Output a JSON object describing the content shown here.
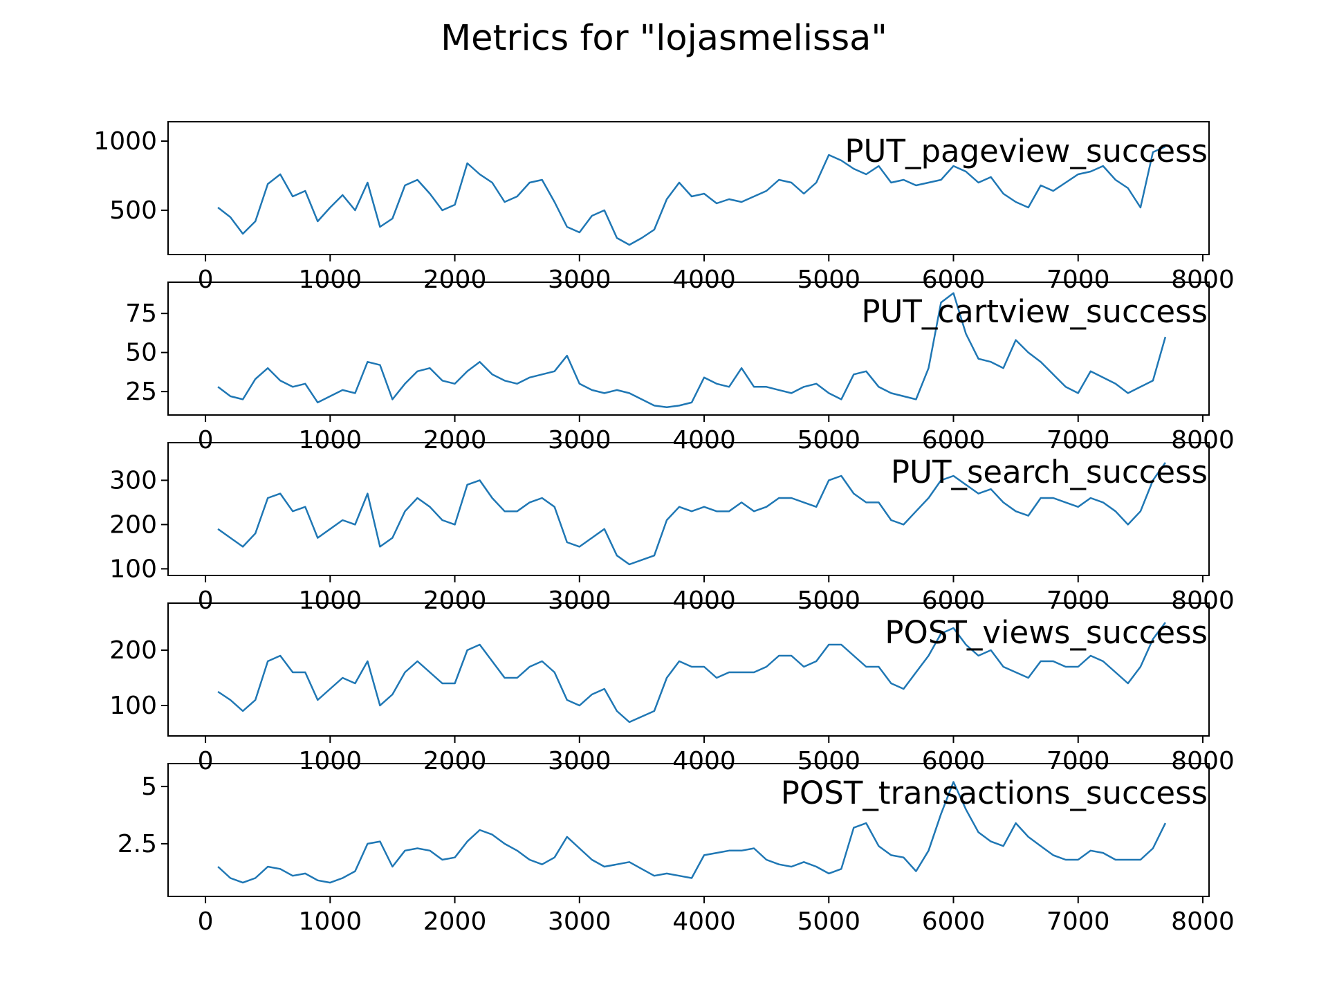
{
  "figure": {
    "title": "Metrics for \"lojasmelissa\"",
    "line_color": "#1f77b4"
  },
  "chart_data": [
    {
      "type": "line",
      "title": "PUT_pageview_success",
      "xlim": [
        -300,
        8050
      ],
      "ylim": [
        180,
        1140
      ],
      "xticks": [
        0,
        1000,
        2000,
        3000,
        4000,
        5000,
        6000,
        7000,
        8000
      ],
      "yticks": [
        500,
        1000
      ],
      "series": [
        {
          "x": [
            100,
            200,
            300,
            400,
            500,
            600,
            700,
            800,
            900,
            1000,
            1100,
            1200,
            1300,
            1400,
            1500,
            1600,
            1700,
            1800,
            1900,
            2000,
            2100,
            2200,
            2300,
            2400,
            2500,
            2600,
            2700,
            2800,
            2900,
            3000,
            3100,
            3200,
            3300,
            3400,
            3500,
            3600,
            3700,
            3800,
            3900,
            4000,
            4100,
            4200,
            4300,
            4400,
            4500,
            4600,
            4700,
            4800,
            4900,
            5000,
            5100,
            5200,
            5300,
            5400,
            5500,
            5600,
            5700,
            5800,
            5900,
            6000,
            6100,
            6200,
            6300,
            6400,
            6500,
            6600,
            6700,
            6800,
            6900,
            7000,
            7100,
            7200,
            7300,
            7400,
            7500,
            7600,
            7700
          ],
          "y": [
            520,
            450,
            330,
            420,
            690,
            760,
            600,
            640,
            420,
            520,
            610,
            500,
            700,
            380,
            440,
            680,
            720,
            620,
            500,
            540,
            840,
            760,
            700,
            560,
            600,
            700,
            720,
            560,
            380,
            340,
            460,
            500,
            300,
            250,
            300,
            360,
            580,
            700,
            600,
            620,
            550,
            580,
            560,
            600,
            640,
            720,
            700,
            620,
            700,
            900,
            860,
            800,
            760,
            820,
            700,
            720,
            680,
            700,
            720,
            820,
            780,
            700,
            740,
            620,
            560,
            520,
            680,
            640,
            700,
            760,
            780,
            820,
            720,
            660,
            520,
            920,
            960
          ]
        }
      ]
    },
    {
      "type": "line",
      "title": "PUT_cartview_success",
      "xlim": [
        -300,
        8050
      ],
      "ylim": [
        10,
        95
      ],
      "xticks": [
        0,
        1000,
        2000,
        3000,
        4000,
        5000,
        6000,
        7000,
        8000
      ],
      "yticks": [
        25,
        50,
        75
      ],
      "series": [
        {
          "x": [
            100,
            200,
            300,
            400,
            500,
            600,
            700,
            800,
            900,
            1000,
            1100,
            1200,
            1300,
            1400,
            1500,
            1600,
            1700,
            1800,
            1900,
            2000,
            2100,
            2200,
            2300,
            2400,
            2500,
            2600,
            2700,
            2800,
            2900,
            3000,
            3100,
            3200,
            3300,
            3400,
            3500,
            3600,
            3700,
            3800,
            3900,
            4000,
            4100,
            4200,
            4300,
            4400,
            4500,
            4600,
            4700,
            4800,
            4900,
            5000,
            5100,
            5200,
            5300,
            5400,
            5500,
            5600,
            5700,
            5800,
            5900,
            6000,
            6100,
            6200,
            6300,
            6400,
            6500,
            6600,
            6700,
            6800,
            6900,
            7000,
            7100,
            7200,
            7300,
            7400,
            7500,
            7600,
            7700
          ],
          "y": [
            28,
            22,
            20,
            33,
            40,
            32,
            28,
            30,
            18,
            22,
            26,
            24,
            44,
            42,
            20,
            30,
            38,
            40,
            32,
            30,
            38,
            44,
            36,
            32,
            30,
            34,
            36,
            38,
            48,
            30,
            26,
            24,
            26,
            24,
            20,
            16,
            15,
            16,
            18,
            34,
            30,
            28,
            40,
            28,
            28,
            26,
            24,
            28,
            30,
            24,
            20,
            36,
            38,
            28,
            24,
            22,
            20,
            40,
            82,
            88,
            62,
            46,
            44,
            40,
            58,
            50,
            44,
            36,
            28,
            24,
            38,
            34,
            30,
            24,
            28,
            32,
            60
          ]
        }
      ]
    },
    {
      "type": "line",
      "title": "PUT_search_success",
      "xlim": [
        -300,
        8050
      ],
      "ylim": [
        85,
        385
      ],
      "xticks": [
        0,
        1000,
        2000,
        3000,
        4000,
        5000,
        6000,
        7000,
        8000
      ],
      "yticks": [
        100,
        200,
        300
      ],
      "series": [
        {
          "x": [
            100,
            200,
            300,
            400,
            500,
            600,
            700,
            800,
            900,
            1000,
            1100,
            1200,
            1300,
            1400,
            1500,
            1600,
            1700,
            1800,
            1900,
            2000,
            2100,
            2200,
            2300,
            2400,
            2500,
            2600,
            2700,
            2800,
            2900,
            3000,
            3100,
            3200,
            3300,
            3400,
            3500,
            3600,
            3700,
            3800,
            3900,
            4000,
            4100,
            4200,
            4300,
            4400,
            4500,
            4600,
            4700,
            4800,
            4900,
            5000,
            5100,
            5200,
            5300,
            5400,
            5500,
            5600,
            5700,
            5800,
            5900,
            6000,
            6100,
            6200,
            6300,
            6400,
            6500,
            6600,
            6700,
            6800,
            6900,
            7000,
            7100,
            7200,
            7300,
            7400,
            7500,
            7600,
            7700
          ],
          "y": [
            190,
            170,
            150,
            180,
            260,
            270,
            230,
            240,
            170,
            190,
            210,
            200,
            270,
            150,
            170,
            230,
            260,
            240,
            210,
            200,
            290,
            300,
            260,
            230,
            230,
            250,
            260,
            240,
            160,
            150,
            170,
            190,
            130,
            110,
            120,
            130,
            210,
            240,
            230,
            240,
            230,
            230,
            250,
            230,
            240,
            260,
            260,
            250,
            240,
            300,
            310,
            270,
            250,
            250,
            210,
            200,
            230,
            260,
            300,
            310,
            290,
            270,
            280,
            250,
            230,
            220,
            260,
            260,
            250,
            240,
            260,
            250,
            230,
            200,
            230,
            300,
            340
          ]
        }
      ]
    },
    {
      "type": "line",
      "title": "POST_views_success",
      "xlim": [
        -300,
        8050
      ],
      "ylim": [
        45,
        285
      ],
      "xticks": [
        0,
        1000,
        2000,
        3000,
        4000,
        5000,
        6000,
        7000,
        8000
      ],
      "yticks": [
        100,
        200
      ],
      "series": [
        {
          "x": [
            100,
            200,
            300,
            400,
            500,
            600,
            700,
            800,
            900,
            1000,
            1100,
            1200,
            1300,
            1400,
            1500,
            1600,
            1700,
            1800,
            1900,
            2000,
            2100,
            2200,
            2300,
            2400,
            2500,
            2600,
            2700,
            2800,
            2900,
            3000,
            3100,
            3200,
            3300,
            3400,
            3500,
            3600,
            3700,
            3800,
            3900,
            4000,
            4100,
            4200,
            4300,
            4400,
            4500,
            4600,
            4700,
            4800,
            4900,
            5000,
            5100,
            5200,
            5300,
            5400,
            5500,
            5600,
            5700,
            5800,
            5900,
            6000,
            6100,
            6200,
            6300,
            6400,
            6500,
            6600,
            6700,
            6800,
            6900,
            7000,
            7100,
            7200,
            7300,
            7400,
            7500,
            7600,
            7700
          ],
          "y": [
            125,
            110,
            90,
            110,
            180,
            190,
            160,
            160,
            110,
            130,
            150,
            140,
            180,
            100,
            120,
            160,
            180,
            160,
            140,
            140,
            200,
            210,
            180,
            150,
            150,
            170,
            180,
            160,
            110,
            100,
            120,
            130,
            90,
            70,
            80,
            90,
            150,
            180,
            170,
            170,
            150,
            160,
            160,
            160,
            170,
            190,
            190,
            170,
            180,
            210,
            210,
            190,
            170,
            170,
            140,
            130,
            160,
            190,
            230,
            240,
            210,
            190,
            200,
            170,
            160,
            150,
            180,
            180,
            170,
            170,
            190,
            180,
            160,
            140,
            170,
            220,
            250
          ]
        }
      ]
    },
    {
      "type": "line",
      "title": "POST_transactions_success",
      "xlim": [
        -300,
        8050
      ],
      "ylim": [
        0.2,
        6.0
      ],
      "xticks": [
        0,
        1000,
        2000,
        3000,
        4000,
        5000,
        6000,
        7000,
        8000
      ],
      "yticks": [
        2.5,
        5.0
      ],
      "series": [
        {
          "x": [
            100,
            200,
            300,
            400,
            500,
            600,
            700,
            800,
            900,
            1000,
            1100,
            1200,
            1300,
            1400,
            1500,
            1600,
            1700,
            1800,
            1900,
            2000,
            2100,
            2200,
            2300,
            2400,
            2500,
            2600,
            2700,
            2800,
            2900,
            3000,
            3100,
            3200,
            3300,
            3400,
            3500,
            3600,
            3700,
            3800,
            3900,
            4000,
            4100,
            4200,
            4300,
            4400,
            4500,
            4600,
            4700,
            4800,
            4900,
            5000,
            5100,
            5200,
            5300,
            5400,
            5500,
            5600,
            5700,
            5800,
            5900,
            6000,
            6100,
            6200,
            6300,
            6400,
            6500,
            6600,
            6700,
            6800,
            6900,
            7000,
            7100,
            7200,
            7300,
            7400,
            7500,
            7600,
            7700
          ],
          "y": [
            1.5,
            1.0,
            0.8,
            1.0,
            1.5,
            1.4,
            1.1,
            1.2,
            0.9,
            0.8,
            1.0,
            1.3,
            2.5,
            2.6,
            1.5,
            2.2,
            2.3,
            2.2,
            1.8,
            1.9,
            2.6,
            3.1,
            2.9,
            2.5,
            2.2,
            1.8,
            1.6,
            1.9,
            2.8,
            2.3,
            1.8,
            1.5,
            1.6,
            1.7,
            1.4,
            1.1,
            1.2,
            1.1,
            1.0,
            2.0,
            2.1,
            2.2,
            2.2,
            2.3,
            1.8,
            1.6,
            1.5,
            1.7,
            1.5,
            1.2,
            1.4,
            3.2,
            3.4,
            2.4,
            2.0,
            1.9,
            1.3,
            2.2,
            3.8,
            5.2,
            4.0,
            3.0,
            2.6,
            2.4,
            3.4,
            2.8,
            2.4,
            2.0,
            1.8,
            1.8,
            2.2,
            2.1,
            1.8,
            1.8,
            1.8,
            2.3,
            3.4
          ]
        }
      ]
    }
  ]
}
